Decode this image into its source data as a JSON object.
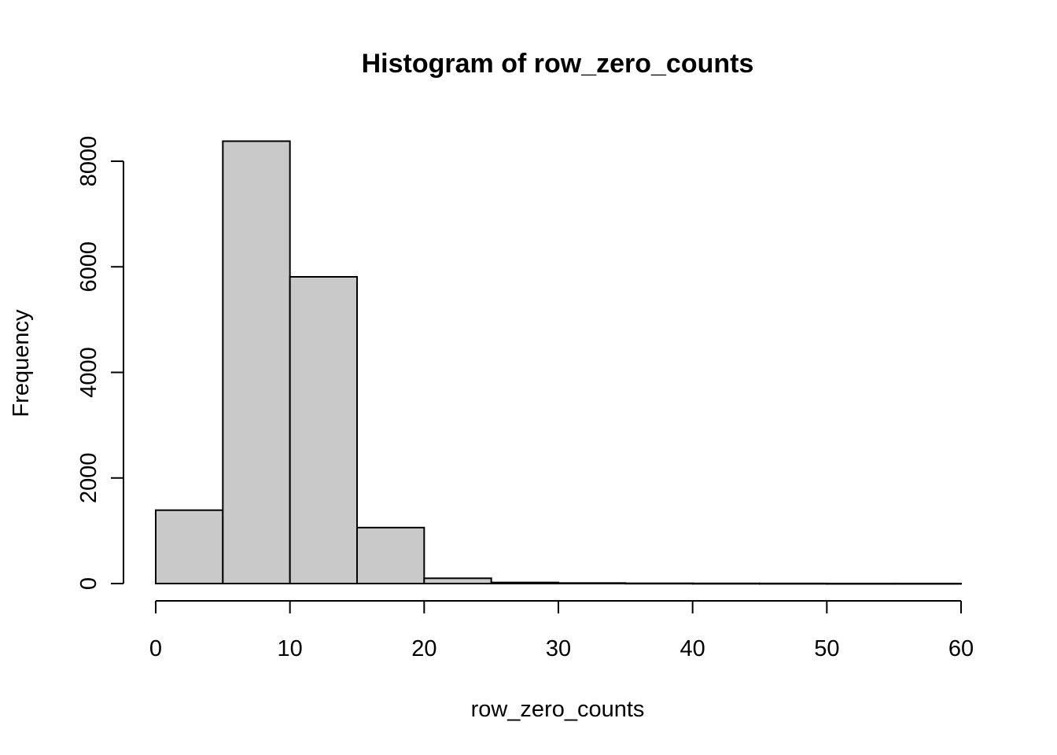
{
  "chart_data": {
    "type": "bar",
    "subtype": "histogram",
    "title": "Histogram of row_zero_counts",
    "xlabel": "row_zero_counts",
    "ylabel": "Frequency",
    "bins": [
      {
        "from": 0,
        "to": 5,
        "count": 1390
      },
      {
        "from": 5,
        "to": 10,
        "count": 8380
      },
      {
        "from": 10,
        "to": 15,
        "count": 5810
      },
      {
        "from": 15,
        "to": 20,
        "count": 1060
      },
      {
        "from": 20,
        "to": 25,
        "count": 100
      },
      {
        "from": 25,
        "to": 30,
        "count": 20
      },
      {
        "from": 30,
        "to": 35,
        "count": 10
      },
      {
        "from": 35,
        "to": 40,
        "count": 5
      },
      {
        "from": 40,
        "to": 45,
        "count": 3
      },
      {
        "from": 45,
        "to": 50,
        "count": 2
      },
      {
        "from": 50,
        "to": 55,
        "count": 1
      },
      {
        "from": 55,
        "to": 60,
        "count": 1
      }
    ],
    "xlim": [
      0,
      60
    ],
    "ylim": [
      0,
      8380
    ],
    "xticks": [
      0,
      10,
      20,
      30,
      40,
      50,
      60
    ],
    "yticks": [
      0,
      2000,
      4000,
      6000,
      8000
    ],
    "bar_color": "#c9c9c9",
    "grid": false,
    "legend": "none"
  }
}
